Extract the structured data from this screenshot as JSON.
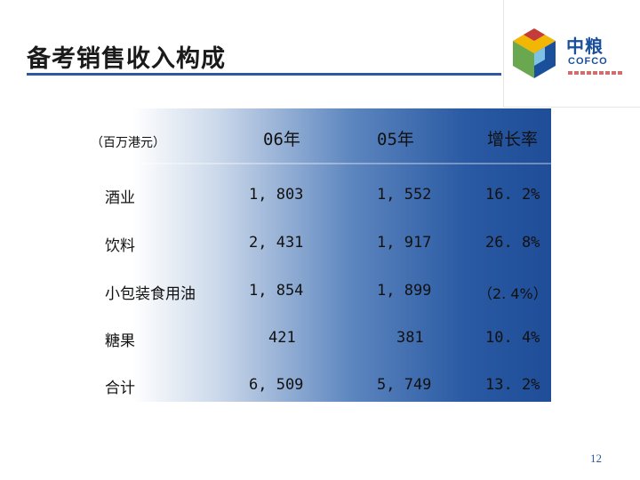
{
  "slide": {
    "title": "备考销售收入构成",
    "page_number": "12"
  },
  "logo": {
    "name_cn": "中粮",
    "name_en": "COFCO",
    "colors": {
      "primary": "#1a4f9c",
      "accent_red": "#c43b3b",
      "accent_yellow": "#f2b705",
      "accent_green": "#6aa84f",
      "accent_lightblue": "#7ec3e6"
    }
  },
  "table": {
    "unit": "（百万港元）",
    "headers": [
      "06年",
      "05年",
      "增长率"
    ],
    "rows": [
      {
        "label": "酒业",
        "y06": "1, 803",
        "y05": "1, 552",
        "growth": "16. 2%"
      },
      {
        "label": "饮料",
        "y06": "2, 431",
        "y05": "1, 917",
        "growth": "26. 8%"
      },
      {
        "label": "小包装食用油",
        "y06": "1, 854",
        "y05": "1, 899",
        "growth": "（2. 4%）"
      },
      {
        "label": "糖果",
        "y06": "421",
        "y05": "381",
        "growth": "10. 4%"
      },
      {
        "label": "合计",
        "y06": "6, 509",
        "y05": "5, 749",
        "growth": "13. 2%"
      }
    ]
  },
  "colors": {
    "title_rule": "#2c5aa0",
    "table_gradient_end": "#1f4d98"
  }
}
